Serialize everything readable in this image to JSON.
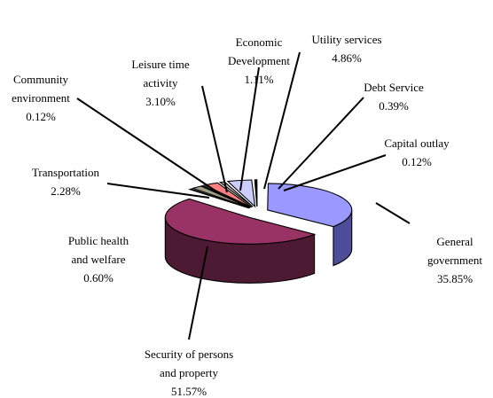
{
  "chart_data": {
    "type": "pie",
    "style": "3d-exploded",
    "title": "",
    "legend": "none",
    "slices": [
      {
        "label": "General government",
        "percent_text": "35.85%",
        "value": 35.85,
        "color": "#9999ff",
        "side_color": "#4d4d99"
      },
      {
        "label": "Security of persons and property",
        "percent_text": "51.57%",
        "value": 51.57,
        "color": "#993366",
        "side_color": "#4d1a33"
      },
      {
        "label": "Public health and welfare",
        "percent_text": "0.60%",
        "value": 0.6,
        "color": "#ffffcc",
        "side_color": "#808066"
      },
      {
        "label": "Transportation",
        "percent_text": "2.28%",
        "value": 2.28,
        "color": "#a09c86",
        "side_color": "#54503f"
      },
      {
        "label": "Community environment",
        "percent_text": "0.12%",
        "value": 0.12,
        "color": "#669999",
        "side_color": "#334d4d"
      },
      {
        "label": "Leisure time activity",
        "percent_text": "3.10%",
        "value": 3.1,
        "color": "#ff8080",
        "side_color": "#804040"
      },
      {
        "label": "Economic Development",
        "percent_text": "1.11%",
        "value": 1.11,
        "color": "#c0c0c0",
        "side_color": "#606060"
      },
      {
        "label": "Utility services",
        "percent_text": "4.86%",
        "value": 4.86,
        "color": "#ccccff",
        "side_color": "#66667f"
      },
      {
        "label": "Debt Service",
        "percent_text": "0.39%",
        "value": 0.39,
        "color": "#000080",
        "side_color": "#000040"
      },
      {
        "label": "Capital outlay",
        "percent_text": "0.12%",
        "value": 0.12,
        "color": "#ff00ff",
        "side_color": "#800080"
      }
    ]
  }
}
